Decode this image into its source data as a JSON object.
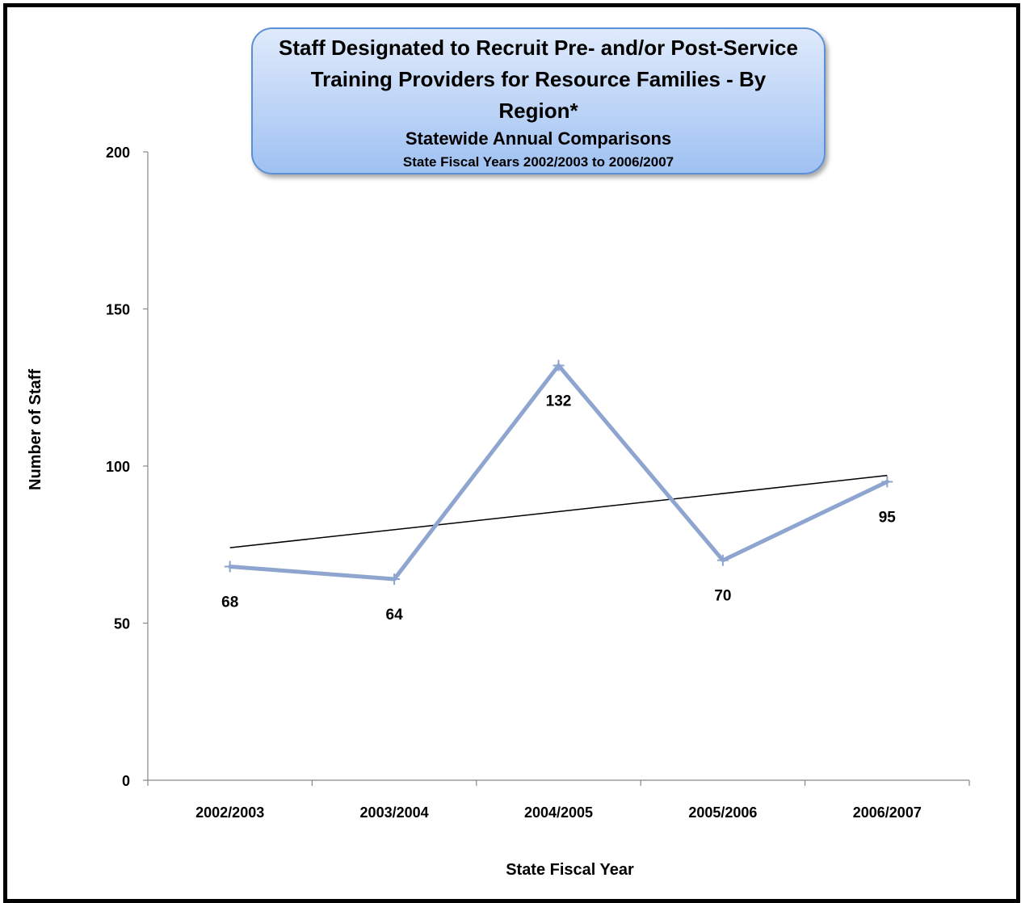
{
  "chart_data": {
    "type": "line",
    "title": "Staff Designated to Recruit Pre- and/or Post-Service Training Providers for Resource Families - By Region*",
    "subtitle": "Statewide Annual Comparisons",
    "subtitle2": "State Fiscal Years 2002/2003 to 2006/2007",
    "xlabel": "State Fiscal Year",
    "ylabel": "Number of Staff",
    "categories": [
      "2002/2003",
      "2003/2004",
      "2004/2005",
      "2005/2006",
      "2006/2007"
    ],
    "series": [
      {
        "values": [
          68,
          64,
          132,
          70,
          95
        ],
        "color": "#8ea5cf"
      }
    ],
    "trendline": {
      "start": 74,
      "end": 97,
      "color": "#000000"
    },
    "ylim": [
      0,
      200
    ],
    "yticks": [
      0,
      50,
      100,
      150,
      200
    ],
    "grid": false,
    "legend": "none"
  }
}
